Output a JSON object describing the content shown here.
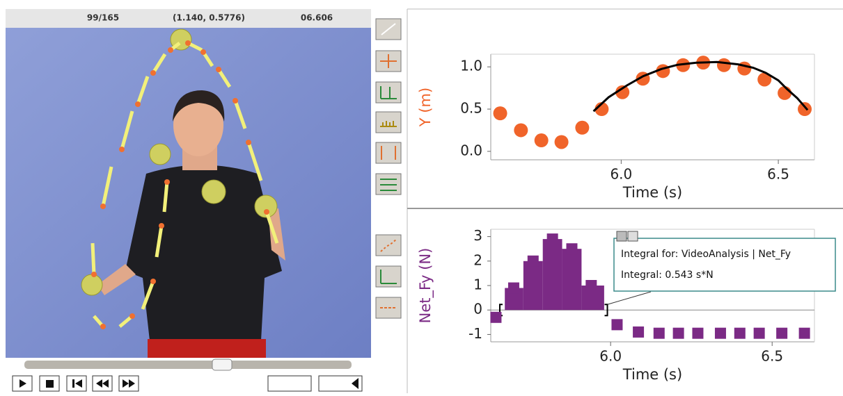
{
  "video": {
    "frame": "99/165",
    "coords": "(1.140, 0.5776)",
    "time": "06.606"
  },
  "chart_data": [
    {
      "type": "scatter",
      "marker": "circle",
      "xlabel": "Time (s)",
      "ylabel": "Y (m)",
      "x": [
        5.615,
        5.681,
        5.746,
        5.81,
        5.876,
        5.938,
        6.004,
        6.069,
        6.133,
        6.197,
        6.261,
        6.327,
        6.392,
        6.456,
        6.52,
        6.584
      ],
      "series": [
        {
          "color": "#f0642a",
          "values": [
            0.45,
            0.25,
            0.13,
            0.11,
            0.28,
            0.5,
            0.7,
            0.86,
            0.95,
            1.02,
            1.05,
            1.02,
            0.98,
            0.85,
            0.69,
            0.5
          ]
        }
      ],
      "fit": {
        "color": "#000000",
        "x": [
          5.912,
          5.96,
          6.018,
          6.07,
          6.128,
          6.18,
          6.239,
          6.305,
          6.372,
          6.42,
          6.46,
          6.5,
          6.527,
          6.56,
          6.593
        ],
        "values": [
          0.475,
          0.64,
          0.78,
          0.89,
          0.975,
          1.025,
          1.05,
          1.057,
          1.03,
          0.99,
          0.93,
          0.84,
          0.74,
          0.63,
          0.49
        ]
      },
      "xlim": [
        5.585,
        6.615
      ],
      "ylim": [
        -0.1,
        1.15
      ],
      "xticks": [
        {
          "value": 6,
          "label": "6.0"
        },
        {
          "value": 6.5,
          "label": "6.5"
        }
      ],
      "yticks": [
        {
          "value": 0,
          "label": "0.0"
        },
        {
          "value": 0.5,
          "label": "0.5"
        },
        {
          "value": 1,
          "label": "1.0"
        }
      ]
    },
    {
      "type": "scatter",
      "marker": "square",
      "xlabel": "Time (s)",
      "ylabel": "Net_Fy (N)",
      "x": [
        5.645,
        5.7,
        5.76,
        5.82,
        5.88,
        5.94,
        6.02,
        6.086,
        6.15,
        6.21,
        6.27,
        6.34,
        6.4,
        6.46,
        6.53,
        6.6
      ],
      "series": [
        {
          "color": "#7b2a85",
          "values": [
            -0.3,
            0.9,
            2.0,
            2.9,
            2.5,
            1.0,
            -0.6,
            -0.9,
            -0.95,
            -0.95,
            -0.95,
            -0.95,
            -0.95,
            -0.95,
            -0.95,
            -0.95
          ]
        }
      ],
      "integral_range": [
        5.657,
        5.99
      ],
      "annotations": [
        "Integral for: VideoAnalysis | Net_Fy",
        "Integral: 0.543 s*N"
      ],
      "xlim": [
        5.629,
        6.631
      ],
      "ylim": [
        -1.3,
        3.3
      ],
      "xticks": [
        {
          "value": 6,
          "label": "6.0"
        },
        {
          "value": 6.5,
          "label": "6.5"
        }
      ],
      "yticks": [
        -1,
        0,
        1,
        2,
        3
      ]
    }
  ]
}
